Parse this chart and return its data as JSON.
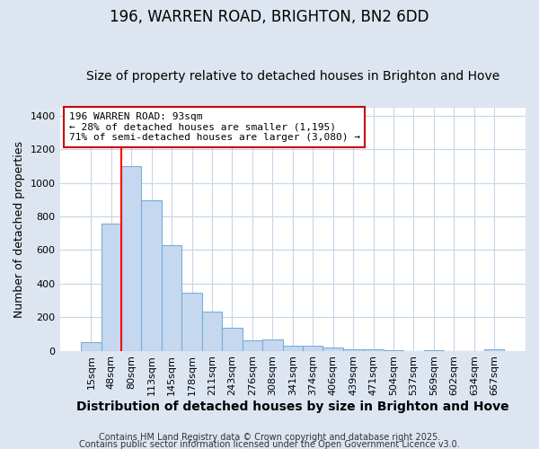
{
  "title": "196, WARREN ROAD, BRIGHTON, BN2 6DD",
  "subtitle": "Size of property relative to detached houses in Brighton and Hove",
  "xlabel": "Distribution of detached houses by size in Brighton and Hove",
  "ylabel": "Number of detached properties",
  "categories": [
    "15sqm",
    "48sqm",
    "80sqm",
    "113sqm",
    "145sqm",
    "178sqm",
    "211sqm",
    "243sqm",
    "276sqm",
    "308sqm",
    "341sqm",
    "374sqm",
    "406sqm",
    "439sqm",
    "471sqm",
    "504sqm",
    "537sqm",
    "569sqm",
    "602sqm",
    "634sqm",
    "667sqm"
  ],
  "values": [
    50,
    760,
    1100,
    895,
    630,
    345,
    232,
    135,
    60,
    68,
    32,
    28,
    18,
    10,
    8,
    2,
    0,
    5,
    0,
    0,
    8
  ],
  "bar_color": "#c5d8f0",
  "bar_edge_color": "#7aaed6",
  "bar_edge_width": 0.8,
  "red_line_x": 1.5,
  "annotation_text": "196 WARREN ROAD: 93sqm\n← 28% of detached houses are smaller (1,195)\n71% of semi-detached houses are larger (3,080) →",
  "annotation_box_facecolor": "#ffffff",
  "annotation_box_edgecolor": "#cc0000",
  "ylim": [
    0,
    1450
  ],
  "yticks": [
    0,
    200,
    400,
    600,
    800,
    1000,
    1200,
    1400
  ],
  "fig_facecolor": "#dde5f0",
  "plot_facecolor": "#ffffff",
  "grid_color": "#c8d4e8",
  "title_fontsize": 12,
  "subtitle_fontsize": 10,
  "tick_fontsize": 8,
  "ylabel_fontsize": 9,
  "xlabel_fontsize": 10,
  "annotation_fontsize": 8,
  "footer_fontsize": 7,
  "footer_line1": "Contains HM Land Registry data © Crown copyright and database right 2025.",
  "footer_line2": "Contains public sector information licensed under the Open Government Licence v3.0."
}
